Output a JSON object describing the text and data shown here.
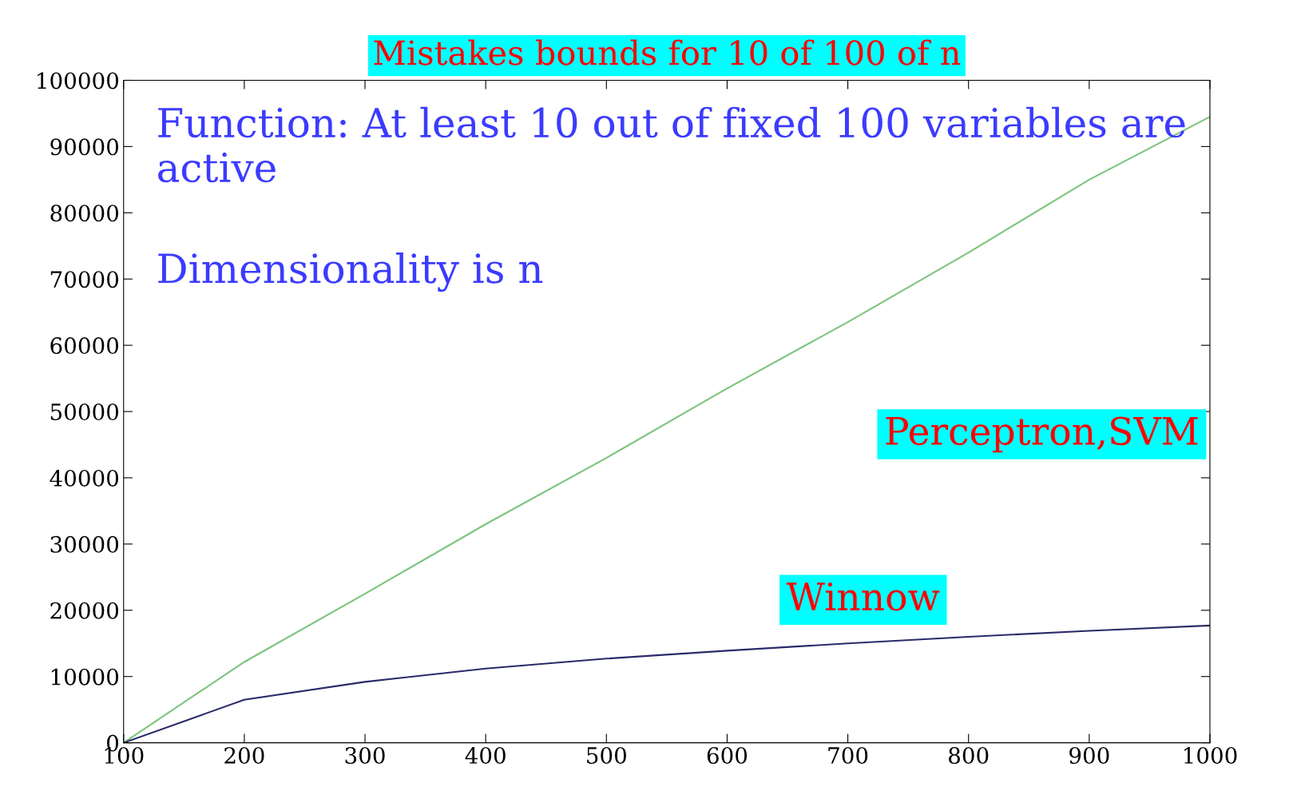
{
  "chart_data": {
    "type": "line",
    "title": "Mistakes bounds for 10 of 100 of n",
    "x": [
      100,
      200,
      300,
      400,
      500,
      600,
      700,
      800,
      900,
      1000
    ],
    "series": [
      {
        "name": "Perceptron,SVM",
        "color": "#7cc47c",
        "values": [
          0,
          12200,
          22500,
          33000,
          43000,
          53500,
          63500,
          74000,
          85000,
          94500
        ]
      },
      {
        "name": "Winnow",
        "color": "#2a2a6a",
        "values": [
          0,
          6500,
          9200,
          11200,
          12700,
          13900,
          15000,
          16000,
          16900,
          17700
        ]
      }
    ],
    "annotations": [
      "Function: At least 10 out of fixed 100 variables are active",
      "Dimensionality is n"
    ],
    "xlim": [
      100,
      1000
    ],
    "xticks": [
      100,
      200,
      300,
      400,
      500,
      600,
      700,
      800,
      900,
      1000
    ],
    "ylim": [
      0,
      100000
    ],
    "yticks": [
      0,
      10000,
      20000,
      30000,
      40000,
      50000,
      60000,
      70000,
      80000,
      90000,
      100000
    ],
    "grid": false,
    "legend": false,
    "marker": "none",
    "line_style": "solid"
  }
}
